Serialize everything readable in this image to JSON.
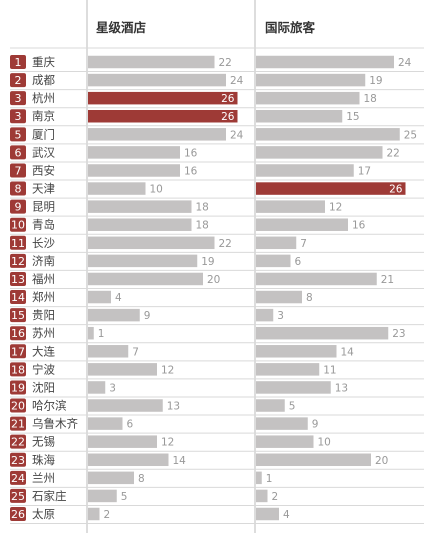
{
  "chart_data": {
    "type": "bar",
    "subtype": "horizontal-bar-ranked",
    "columns": [
      "星级酒店",
      "国际旅客"
    ],
    "rows": [
      {
        "rank": "1",
        "city": "重庆",
        "hotel": 22,
        "intl": 24
      },
      {
        "rank": "2",
        "city": "成都",
        "hotel": 24,
        "intl": 19
      },
      {
        "rank": "3",
        "city": "杭州",
        "hotel": 26,
        "intl": 18
      },
      {
        "rank": "3",
        "city": "南京",
        "hotel": 26,
        "intl": 15
      },
      {
        "rank": "5",
        "city": "厦门",
        "hotel": 24,
        "intl": 25
      },
      {
        "rank": "6",
        "city": "武汉",
        "hotel": 16,
        "intl": 22
      },
      {
        "rank": "7",
        "city": "西安",
        "hotel": 16,
        "intl": 17
      },
      {
        "rank": "8",
        "city": "天津",
        "hotel": 10,
        "intl": 26
      },
      {
        "rank": "9",
        "city": "昆明",
        "hotel": 18,
        "intl": 12
      },
      {
        "rank": "10",
        "city": "青岛",
        "hotel": 18,
        "intl": 16
      },
      {
        "rank": "11",
        "city": "长沙",
        "hotel": 22,
        "intl": 7
      },
      {
        "rank": "12",
        "city": "济南",
        "hotel": 19,
        "intl": 6
      },
      {
        "rank": "13",
        "city": "福州",
        "hotel": 20,
        "intl": 21
      },
      {
        "rank": "14",
        "city": "郑州",
        "hotel": 4,
        "intl": 8
      },
      {
        "rank": "15",
        "city": "贵阳",
        "hotel": 9,
        "intl": 3
      },
      {
        "rank": "16",
        "city": "苏州",
        "hotel": 1,
        "intl": 23
      },
      {
        "rank": "17",
        "city": "大连",
        "hotel": 7,
        "intl": 14
      },
      {
        "rank": "18",
        "city": "宁波",
        "hotel": 12,
        "intl": 11
      },
      {
        "rank": "19",
        "city": "沈阳",
        "hotel": 3,
        "intl": 13
      },
      {
        "rank": "20",
        "city": "哈尔滨",
        "hotel": 13,
        "intl": 5
      },
      {
        "rank": "21",
        "city": "乌鲁木齐",
        "hotel": 6,
        "intl": 9
      },
      {
        "rank": "22",
        "city": "无锡",
        "hotel": 12,
        "intl": 10
      },
      {
        "rank": "23",
        "city": "珠海",
        "hotel": 14,
        "intl": 20
      },
      {
        "rank": "24",
        "city": "兰州",
        "hotel": 8,
        "intl": 1
      },
      {
        "rank": "25",
        "city": "石家庄",
        "hotel": 5,
        "intl": 2
      },
      {
        "rank": "26",
        "city": "太原",
        "hotel": 2,
        "intl": 4
      }
    ],
    "xlim": [
      0,
      26
    ],
    "max_highlight_value": 26,
    "colors": {
      "bar": "#c4c2c2",
      "highlight": "#9e3a36",
      "badge": "#9e3a36",
      "label": "#999999"
    },
    "grid": false,
    "legend": "none"
  }
}
